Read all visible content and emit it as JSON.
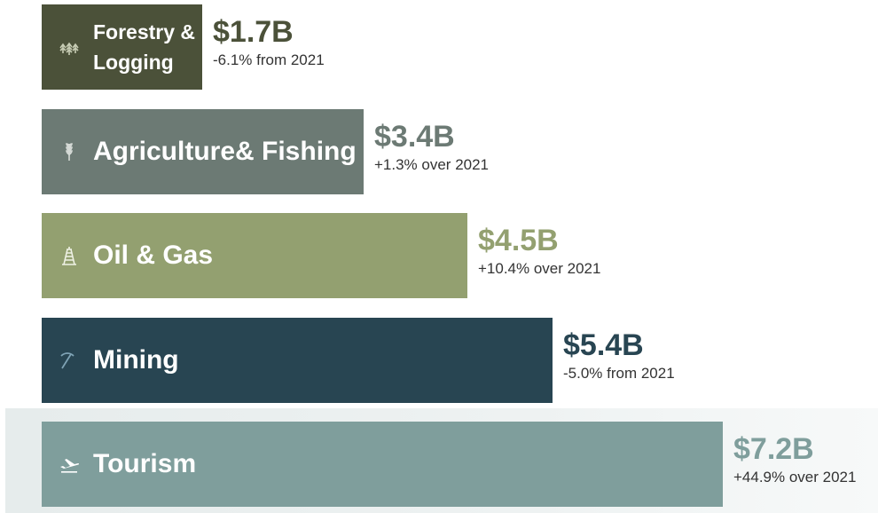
{
  "chart_data": {
    "type": "bar",
    "orientation": "horizontal",
    "unit": "B",
    "categories": [
      "Forestry & Logging",
      "Agriculture& Fishing",
      "Oil & Gas",
      "Mining",
      "Tourism"
    ],
    "values": [
      1.7,
      3.4,
      4.5,
      5.4,
      7.2
    ],
    "value_labels": [
      "$1.7B",
      "$3.4B",
      "$4.5B",
      "$5.4B",
      "$7.2B"
    ],
    "change_labels": [
      "-6.1% from 2021",
      "+1.3% over 2021",
      "+10.4% over 2021",
      "-5.0% from 2021",
      "+44.9% over 2021"
    ],
    "icons": [
      "trees-icon",
      "wheat-icon",
      "oil-derrick-icon",
      "pickaxe-icon",
      "airplane-icon"
    ],
    "colors": [
      "#4b5139",
      "#6c7a74",
      "#93a070",
      "#284552",
      "#7f9e9c"
    ],
    "value_colors": [
      "#4b5139",
      "#6c7a74",
      "#93a070",
      "#284552",
      "#7f9e9c"
    ],
    "highlighted_category": "Tourism",
    "grid": false,
    "legend": "none"
  }
}
